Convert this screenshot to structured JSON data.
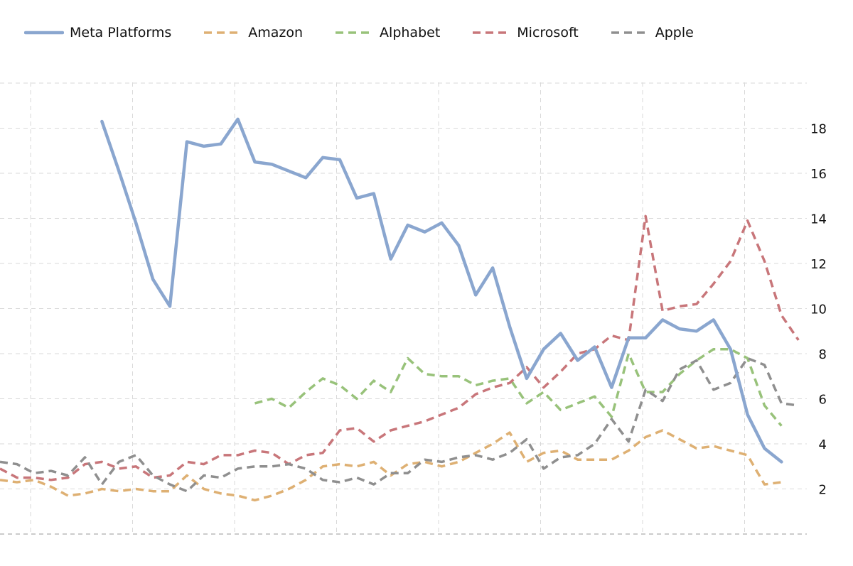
{
  "chart_data": {
    "type": "line",
    "title": "",
    "xlabel": "",
    "ylabel": "",
    "ylim": [
      0,
      20
    ],
    "yticks": [
      2,
      4,
      6,
      8,
      10,
      12,
      14,
      16,
      18
    ],
    "grid": true,
    "legend_position": "top-left",
    "x": [
      0,
      1,
      2,
      3,
      4,
      5,
      6,
      7,
      8,
      9,
      10,
      11,
      12,
      13,
      14,
      15,
      16,
      17,
      18,
      19,
      20,
      21,
      22,
      23,
      24,
      25,
      26,
      27,
      28,
      29,
      30,
      31,
      32,
      33,
      34,
      35,
      36,
      37,
      38,
      39,
      40,
      41,
      42,
      43,
      44,
      45,
      46,
      47
    ],
    "series": [
      {
        "name": "Meta Platforms",
        "color": "#8aa6cf",
        "dash": false,
        "values": [
          null,
          null,
          null,
          null,
          null,
          null,
          18.3,
          16.1,
          13.8,
          11.3,
          10.1,
          17.4,
          17.2,
          17.3,
          18.4,
          16.5,
          16.4,
          16.1,
          15.8,
          16.7,
          16.6,
          14.9,
          15.1,
          12.2,
          13.7,
          13.4,
          13.8,
          12.8,
          10.6,
          11.8,
          9.2,
          6.9,
          8.2,
          8.9,
          7.7,
          8.3,
          6.5,
          8.7,
          8.7,
          9.5,
          9.1,
          9.0,
          9.5,
          8.2,
          5.3,
          3.8,
          3.2,
          null
        ]
      },
      {
        "name": "Amazon",
        "color": "#deb073",
        "dash": true,
        "values": [
          2.4,
          2.3,
          2.4,
          2.1,
          1.7,
          1.8,
          2.0,
          1.9,
          2.0,
          1.9,
          1.9,
          2.6,
          2.0,
          1.8,
          1.7,
          1.5,
          1.7,
          2.0,
          2.4,
          3.0,
          3.1,
          3.0,
          3.2,
          2.6,
          3.1,
          3.2,
          3.0,
          3.2,
          3.6,
          4.0,
          4.5,
          3.2,
          3.6,
          3.7,
          3.3,
          3.3,
          3.3,
          3.7,
          4.3,
          4.6,
          4.2,
          3.8,
          3.9,
          3.7,
          3.5,
          2.2,
          2.3,
          null
        ]
      },
      {
        "name": "Alphabet",
        "color": "#98c27a",
        "dash": true,
        "values": [
          null,
          null,
          null,
          null,
          null,
          null,
          null,
          null,
          null,
          null,
          null,
          null,
          null,
          null,
          null,
          5.8,
          6.0,
          5.6,
          6.3,
          6.9,
          6.6,
          6.0,
          6.8,
          6.3,
          7.8,
          7.1,
          7.0,
          7.0,
          6.6,
          6.8,
          6.9,
          5.8,
          6.3,
          5.5,
          5.8,
          6.1,
          5.2,
          8.0,
          6.3,
          6.3,
          7.1,
          7.7,
          8.2,
          8.2,
          7.8,
          5.7,
          4.8,
          null
        ]
      },
      {
        "name": "Microsoft",
        "color": "#c8767a",
        "dash": true,
        "values": [
          2.9,
          2.5,
          2.5,
          2.4,
          2.5,
          3.1,
          3.2,
          2.9,
          3.0,
          2.5,
          2.6,
          3.2,
          3.1,
          3.5,
          3.5,
          3.7,
          3.6,
          3.1,
          3.5,
          3.6,
          4.6,
          4.7,
          4.1,
          4.6,
          4.8,
          5.0,
          5.3,
          5.6,
          6.2,
          6.5,
          6.7,
          7.4,
          6.5,
          7.2,
          8.0,
          8.2,
          8.8,
          8.6,
          14.1,
          9.9,
          10.1,
          10.2,
          11.1,
          12.1,
          13.9,
          12.1,
          9.7,
          8.6
        ]
      },
      {
        "name": "Apple",
        "color": "#8f8f8f",
        "dash": true,
        "values": [
          3.2,
          3.1,
          2.7,
          2.8,
          2.6,
          3.4,
          2.2,
          3.2,
          3.5,
          2.6,
          2.2,
          1.9,
          2.6,
          2.5,
          2.9,
          3.0,
          3.0,
          3.1,
          2.9,
          2.4,
          2.3,
          2.5,
          2.2,
          2.7,
          2.7,
          3.3,
          3.2,
          3.4,
          3.5,
          3.3,
          3.6,
          4.2,
          2.9,
          3.4,
          3.5,
          4.0,
          5.1,
          4.1,
          6.4,
          5.9,
          7.3,
          7.7,
          6.4,
          6.7,
          7.8,
          7.5,
          5.8,
          5.7
        ]
      }
    ]
  }
}
